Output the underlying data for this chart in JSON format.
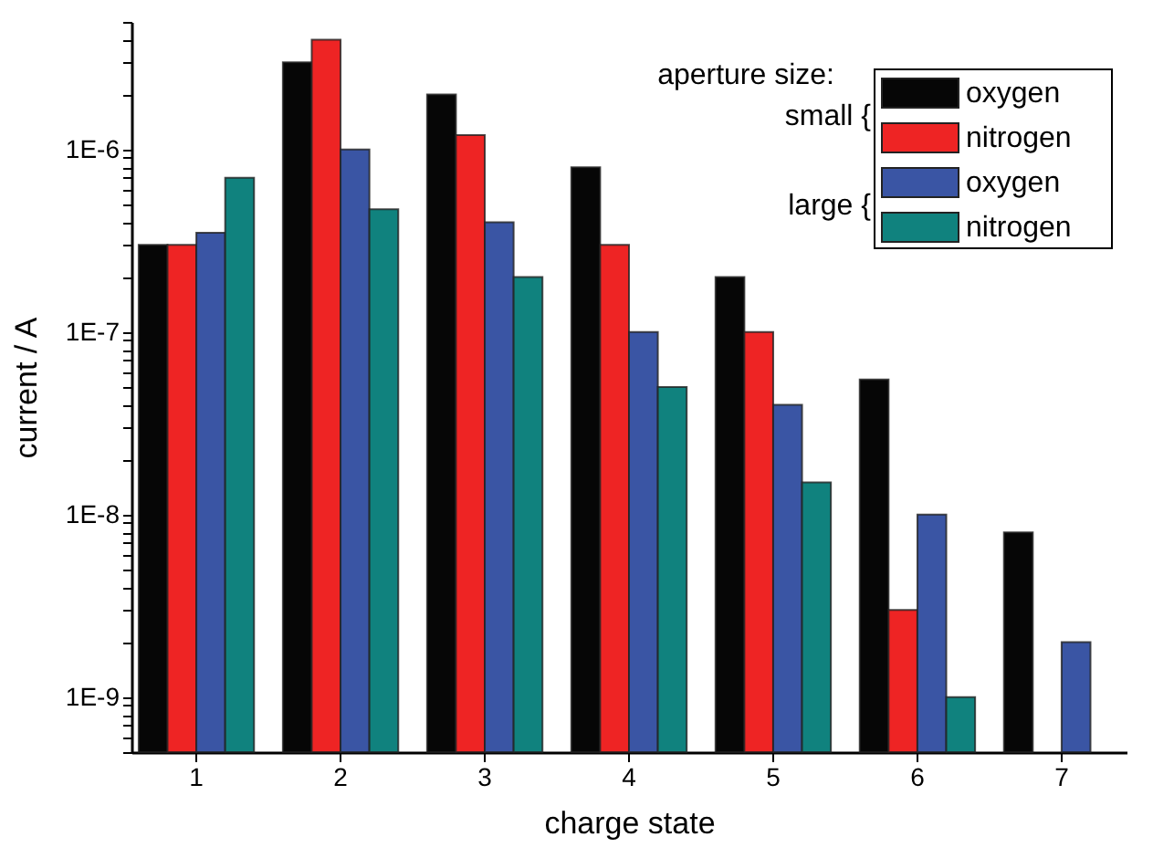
{
  "chart_data": {
    "type": "bar",
    "xlabel": "charge state",
    "ylabel": "current / A",
    "legend_title": "aperture size:",
    "categories": [
      "1",
      "2",
      "3",
      "4",
      "5",
      "6",
      "7"
    ],
    "series": [
      {
        "name": "oxygen",
        "color": "#060606",
        "values": [
          3e-07,
          3e-06,
          2e-06,
          8e-07,
          2e-07,
          5.5e-08,
          8e-09
        ]
      },
      {
        "name": "nitrogen",
        "color": "#ee2424",
        "values": [
          3e-07,
          4e-06,
          1.2e-06,
          3e-07,
          1e-07,
          3e-09,
          null
        ]
      },
      {
        "name": "oxygen",
        "color": "#3a55a4",
        "values": [
          3.5e-07,
          1e-06,
          4e-07,
          1e-07,
          4e-08,
          1e-08,
          2e-09
        ]
      },
      {
        "name": "nitrogen",
        "color": "#10827e",
        "values": [
          7e-07,
          4.7e-07,
          2e-07,
          5e-08,
          1.5e-08,
          1e-09,
          null
        ]
      }
    ],
    "annotations": [
      "small {",
      "large {"
    ],
    "log": true,
    "ylim": [
      5e-10,
      5e-06
    ],
    "yticks": [
      {
        "value": 5e-10,
        "label": null
      },
      {
        "value": 6e-10,
        "label": null
      },
      {
        "value": 7e-10,
        "label": null
      },
      {
        "value": 8e-10,
        "label": null
      },
      {
        "value": 9e-10,
        "label": null
      },
      {
        "value": 1e-09,
        "label": "1E-9"
      },
      {
        "value": 2e-09,
        "label": null
      },
      {
        "value": 3e-09,
        "label": null
      },
      {
        "value": 4e-09,
        "label": null
      },
      {
        "value": 5e-09,
        "label": null
      },
      {
        "value": 6e-09,
        "label": null
      },
      {
        "value": 7e-09,
        "label": null
      },
      {
        "value": 8e-09,
        "label": null
      },
      {
        "value": 9e-09,
        "label": null
      },
      {
        "value": 1e-08,
        "label": "1E-8"
      },
      {
        "value": 2e-08,
        "label": null
      },
      {
        "value": 3e-08,
        "label": null
      },
      {
        "value": 4e-08,
        "label": null
      },
      {
        "value": 5e-08,
        "label": null
      },
      {
        "value": 6e-08,
        "label": null
      },
      {
        "value": 7e-08,
        "label": null
      },
      {
        "value": 8e-08,
        "label": null
      },
      {
        "value": 9e-08,
        "label": null
      },
      {
        "value": 1e-07,
        "label": "1E-7"
      },
      {
        "value": 2e-07,
        "label": null
      },
      {
        "value": 3e-07,
        "label": null
      },
      {
        "value": 4e-07,
        "label": null
      },
      {
        "value": 5e-07,
        "label": null
      },
      {
        "value": 6e-07,
        "label": null
      },
      {
        "value": 7e-07,
        "label": null
      },
      {
        "value": 8e-07,
        "label": null
      },
      {
        "value": 9e-07,
        "label": null
      },
      {
        "value": 1e-06,
        "label": "1E-6"
      },
      {
        "value": 2e-06,
        "label": null
      },
      {
        "value": 3e-06,
        "label": null
      },
      {
        "value": 4e-06,
        "label": null
      },
      {
        "value": 5e-06,
        "label": null
      }
    ],
    "grid": false,
    "legend": "top right"
  }
}
